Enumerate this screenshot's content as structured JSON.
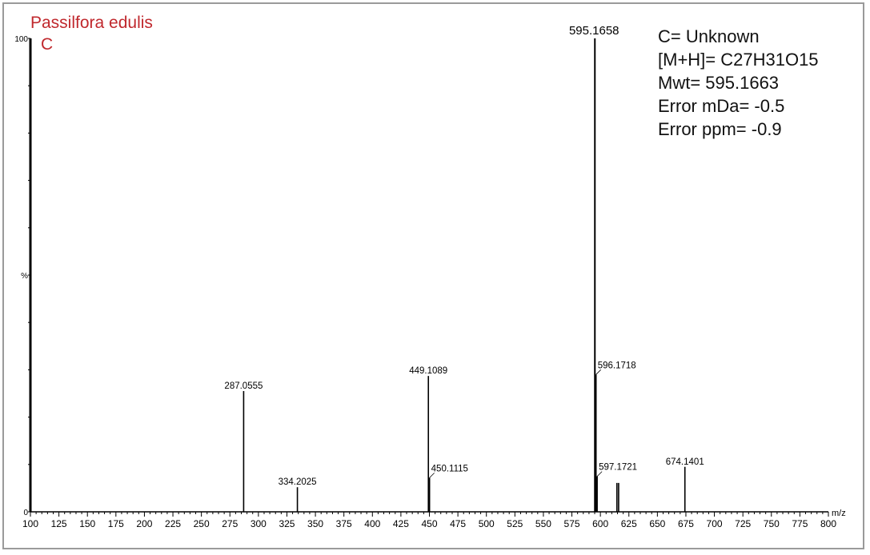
{
  "sample": {
    "name": "Passilfora edulis",
    "label": "C"
  },
  "info": {
    "lines": [
      "C= Unknown",
      "[M+H]= C27H31O15",
      "Mwt= 595.1663",
      "Error mDa= -0.5",
      "Error ppm= -0.9"
    ]
  },
  "chart_data": {
    "type": "bar",
    "xlabel": "m/z",
    "ylabel": "%",
    "xlim": [
      100,
      800
    ],
    "ylim": [
      0,
      100
    ],
    "x_ticks": [
      100,
      125,
      150,
      175,
      200,
      225,
      250,
      275,
      300,
      325,
      350,
      375,
      400,
      425,
      450,
      475,
      500,
      525,
      550,
      575,
      600,
      625,
      650,
      675,
      700,
      725,
      750,
      775,
      800
    ],
    "y_tick_labels": [
      {
        "value": 0,
        "label": "0"
      },
      {
        "value": 50,
        "label": "%"
      },
      {
        "value": 100,
        "label": "100"
      }
    ],
    "peaks": [
      {
        "x": 287.0555,
        "y": 25.5,
        "label": "287.0555"
      },
      {
        "x": 334.2025,
        "y": 5.2,
        "label": "334.2025"
      },
      {
        "x": 449.1089,
        "y": 28.7,
        "label": "449.1089"
      },
      {
        "x": 450.1115,
        "y": 7.2,
        "label": "450.1115"
      },
      {
        "x": 595.1658,
        "y": 100,
        "label": "595.1658"
      },
      {
        "x": 596.1718,
        "y": 29.0,
        "label": "596.1718"
      },
      {
        "x": 597.1721,
        "y": 7.5,
        "label": "597.1721"
      },
      {
        "x": 614.5,
        "y": 6.1,
        "label": ""
      },
      {
        "x": 616.0,
        "y": 6.1,
        "label": ""
      },
      {
        "x": 674.1401,
        "y": 9.5,
        "label": "674.1401"
      }
    ],
    "colors": {
      "sample_title": "#c0282d",
      "axes": "#000000",
      "frame": "#9a9a9a"
    }
  }
}
